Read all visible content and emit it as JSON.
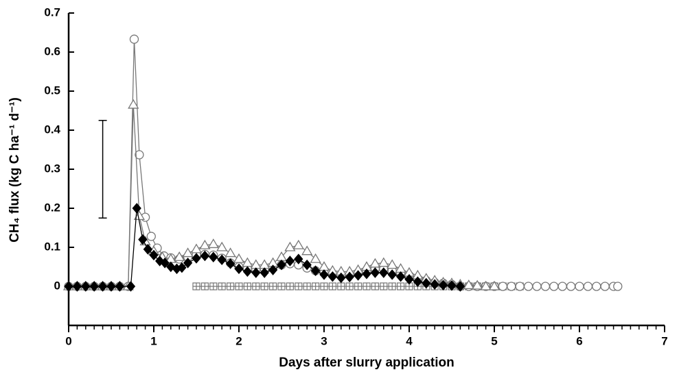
{
  "chart_data": {
    "type": "line",
    "x_label": "Days after slurry application",
    "y_label": "CH₄ flux (kg C ha⁻¹ d⁻¹)",
    "xlim": [
      0,
      7
    ],
    "xticks": [
      0,
      1,
      2,
      3,
      4,
      5,
      6,
      7
    ],
    "ylim": [
      -0.1,
      0.7
    ],
    "yticks": [
      0,
      0.1,
      0.2,
      0.3,
      0.4,
      0.5,
      0.6,
      0.7
    ],
    "error_bar": {
      "x": 0.4,
      "low": 0.175,
      "high": 0.425
    },
    "series": [
      {
        "marker": "circle",
        "color": "#777777",
        "x": [
          0,
          0.1,
          0.2,
          0.3,
          0.4,
          0.5,
          0.6,
          0.7,
          0.77,
          0.83,
          0.9,
          0.97,
          1.04,
          1.12,
          1.2,
          1.3,
          1.4,
          1.5,
          1.6,
          1.7,
          1.8,
          1.9,
          2.0,
          2.1,
          2.2,
          2.3,
          2.4,
          2.5,
          2.6,
          2.7,
          2.8,
          2.9,
          3.0,
          3.1,
          3.2,
          3.3,
          3.4,
          3.5,
          3.6,
          3.7,
          3.8,
          3.9,
          4.0,
          4.1,
          4.2,
          4.3,
          4.4,
          4.5,
          4.6,
          4.7,
          4.8,
          4.9,
          5.0,
          5.1,
          5.2,
          5.3,
          5.4,
          5.5,
          5.6,
          5.7,
          5.8,
          5.9,
          6.0,
          6.1,
          6.2,
          6.3,
          6.4,
          6.45
        ],
        "values": [
          0,
          0,
          0,
          0,
          0,
          0,
          0,
          0,
          0.633,
          0.337,
          0.177,
          0.128,
          0.098,
          0.078,
          0.073,
          0.07,
          0.075,
          0.08,
          0.082,
          0.08,
          0.072,
          0.06,
          0.05,
          0.045,
          0.043,
          0.045,
          0.048,
          0.055,
          0.058,
          0.055,
          0.047,
          0.04,
          0.035,
          0.03,
          0.028,
          0.03,
          0.035,
          0.04,
          0.045,
          0.045,
          0.04,
          0.035,
          0.028,
          0.02,
          0.015,
          0.01,
          0.008,
          0.005,
          0,
          0,
          0,
          0,
          0,
          0,
          0,
          0,
          0,
          0,
          0,
          0,
          0,
          0,
          0,
          0,
          0,
          0,
          0,
          0
        ]
      },
      {
        "marker": "triangle",
        "color": "#777777",
        "x": [
          0,
          0.1,
          0.2,
          0.3,
          0.4,
          0.5,
          0.6,
          0.7,
          0.76,
          0.83,
          0.9,
          1.0,
          1.1,
          1.2,
          1.3,
          1.4,
          1.5,
          1.6,
          1.7,
          1.8,
          1.9,
          2.0,
          2.1,
          2.2,
          2.3,
          2.4,
          2.5,
          2.6,
          2.7,
          2.8,
          2.9,
          3.0,
          3.1,
          3.2,
          3.3,
          3.4,
          3.5,
          3.6,
          3.7,
          3.8,
          3.9,
          4.0,
          4.1,
          4.2,
          4.3,
          4.4,
          4.5,
          4.6,
          4.7,
          4.8,
          4.9,
          5.0
        ],
        "values": [
          0,
          0,
          0,
          0,
          0,
          0,
          0,
          0,
          0.465,
          0.18,
          0.115,
          0.09,
          0.075,
          0.07,
          0.075,
          0.085,
          0.095,
          0.105,
          0.108,
          0.1,
          0.085,
          0.07,
          0.06,
          0.055,
          0.055,
          0.06,
          0.075,
          0.1,
          0.105,
          0.09,
          0.07,
          0.05,
          0.04,
          0.038,
          0.038,
          0.042,
          0.05,
          0.058,
          0.06,
          0.055,
          0.045,
          0.035,
          0.028,
          0.02,
          0.015,
          0.01,
          0.008,
          0.005,
          0.003,
          0.002,
          0,
          0
        ]
      },
      {
        "marker": "diamond",
        "color": "#000000",
        "x": [
          0,
          0.1,
          0.2,
          0.3,
          0.4,
          0.5,
          0.6,
          0.73,
          0.8,
          0.87,
          0.93,
          1.0,
          1.07,
          1.13,
          1.2,
          1.27,
          1.33,
          1.4,
          1.5,
          1.6,
          1.7,
          1.8,
          1.9,
          2.0,
          2.1,
          2.2,
          2.3,
          2.4,
          2.5,
          2.6,
          2.7,
          2.8,
          2.9,
          3.0,
          3.1,
          3.2,
          3.3,
          3.4,
          3.5,
          3.6,
          3.7,
          3.8,
          3.9,
          4.0,
          4.1,
          4.2,
          4.3,
          4.4,
          4.5,
          4.6
        ],
        "values": [
          0,
          0,
          0,
          0,
          0,
          0,
          0,
          0,
          0.2,
          0.12,
          0.095,
          0.08,
          0.065,
          0.06,
          0.05,
          0.045,
          0.048,
          0.06,
          0.072,
          0.078,
          0.075,
          0.068,
          0.058,
          0.045,
          0.038,
          0.035,
          0.035,
          0.042,
          0.055,
          0.065,
          0.07,
          0.055,
          0.04,
          0.03,
          0.025,
          0.022,
          0.024,
          0.028,
          0.032,
          0.035,
          0.035,
          0.03,
          0.025,
          0.018,
          0.012,
          0.008,
          0.005,
          0.003,
          0.002,
          0
        ]
      },
      {
        "marker": "square",
        "color": "#777777",
        "x": [
          1.5,
          1.6,
          1.7,
          1.8,
          1.9,
          2.0,
          2.1,
          2.2,
          2.3,
          2.4,
          2.5,
          2.6,
          2.7,
          2.8,
          2.9,
          3.0,
          3.1,
          3.2,
          3.3,
          3.4,
          3.5,
          3.6,
          3.7,
          3.8,
          3.9,
          4.0,
          4.1,
          4.2,
          4.3,
          4.4,
          4.5,
          4.6,
          4.7,
          4.8,
          4.9,
          5.0,
          5.1,
          5.2,
          5.3
        ],
        "values": [
          0,
          0,
          0,
          0,
          0,
          0,
          0,
          0,
          0,
          0,
          0,
          0,
          0,
          0,
          0,
          0,
          0,
          0,
          0,
          0,
          0,
          0,
          0,
          0,
          0,
          0,
          0,
          0,
          0,
          0,
          0,
          0,
          0,
          0,
          0,
          0,
          0,
          0,
          0
        ]
      }
    ]
  }
}
